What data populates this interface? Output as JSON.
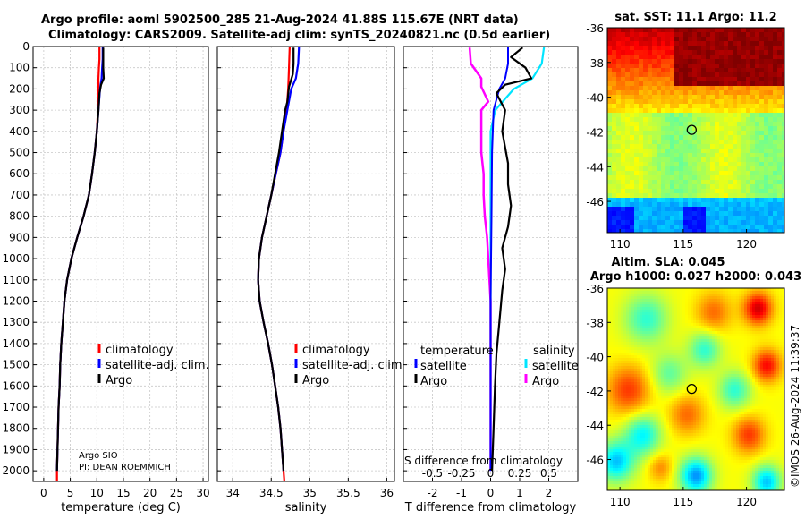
{
  "header": {
    "line1": "Argo profile: aoml 5902500_285 21-Aug-2024 41.88S 115.67E (NRT data)",
    "line2": "Climatology: CARS2009. Satellite-adj clim: synTS_20240821.nc (0.5d earlier)"
  },
  "map_sst": {
    "title": "sat. SST: 11.1 Argo: 11.2"
  },
  "map_sla": {
    "title1": "Altim. SLA: 0.045",
    "title2": "Argo h1000: 0.027 h2000: 0.043"
  },
  "watermark": "©IMOS 26-Aug-2024 11:39:37",
  "colors": {
    "climatology": "#ff0000",
    "satellite": "#0000ff",
    "argo": "#000000",
    "sat_diff_S": "#00e5ff",
    "argo_diff_S": "#ff00ff"
  },
  "chart_data": [
    {
      "type": "line",
      "name": "temperature-profile",
      "xlabel": "temperature (deg C)",
      "ylabel": "",
      "xlim": [
        -2,
        31
      ],
      "ylim": [
        2050,
        0
      ],
      "xticks": [
        0,
        5,
        10,
        15,
        20,
        25,
        30
      ],
      "yticks": [
        0,
        100,
        200,
        300,
        400,
        500,
        600,
        700,
        800,
        900,
        1000,
        1100,
        1200,
        1300,
        1400,
        1500,
        1600,
        1700,
        1800,
        1900,
        2000
      ],
      "legend": [
        "climatology",
        "satellite-adj. clim.",
        "Argo"
      ],
      "credit1": "Argo SIO",
      "credit2": "PI: DEAN ROEMMICH",
      "series": [
        {
          "name": "climatology",
          "points": [
            [
              10.5,
              0
            ],
            [
              10.5,
              60
            ],
            [
              10.4,
              100
            ],
            [
              10.3,
              150
            ],
            [
              10.3,
              200
            ],
            [
              10.2,
              300
            ],
            [
              10.0,
              400
            ],
            [
              9.6,
              500
            ],
            [
              9.1,
              600
            ],
            [
              8.5,
              700
            ],
            [
              7.5,
              800
            ],
            [
              6.3,
              900
            ],
            [
              5.2,
              1000
            ],
            [
              4.4,
              1100
            ],
            [
              3.9,
              1200
            ],
            [
              3.6,
              1300
            ],
            [
              3.3,
              1400
            ],
            [
              3.1,
              1500
            ],
            [
              3.0,
              1600
            ],
            [
              2.8,
              1700
            ],
            [
              2.7,
              1800
            ],
            [
              2.6,
              1900
            ],
            [
              2.5,
              2000
            ],
            [
              2.5,
              2050
            ]
          ]
        },
        {
          "name": "satellite-adj. clim.",
          "points": [
            [
              11.1,
              0
            ],
            [
              11.1,
              60
            ],
            [
              11.0,
              100
            ],
            [
              10.9,
              150
            ],
            [
              10.6,
              200
            ],
            [
              10.3,
              300
            ],
            [
              10.0,
              400
            ],
            [
              9.6,
              500
            ],
            [
              9.1,
              600
            ],
            [
              8.5,
              700
            ],
            [
              7.5,
              800
            ],
            [
              6.3,
              900
            ],
            [
              5.2,
              1000
            ],
            [
              4.4,
              1100
            ],
            [
              3.9,
              1200
            ],
            [
              3.6,
              1300
            ],
            [
              3.3,
              1400
            ],
            [
              3.1,
              1500
            ],
            [
              3.0,
              1600
            ],
            [
              2.8,
              1700
            ],
            [
              2.7,
              1800
            ],
            [
              2.6,
              1900
            ],
            [
              2.5,
              2000
            ]
          ]
        },
        {
          "name": "Argo",
          "points": [
            [
              11.2,
              5
            ],
            [
              11.2,
              50
            ],
            [
              11.2,
              100
            ],
            [
              11.3,
              150
            ],
            [
              10.8,
              180
            ],
            [
              10.5,
              220
            ],
            [
              10.3,
              300
            ],
            [
              10.0,
              400
            ],
            [
              9.6,
              500
            ],
            [
              9.1,
              600
            ],
            [
              8.5,
              700
            ],
            [
              7.5,
              800
            ],
            [
              6.3,
              900
            ],
            [
              5.2,
              1000
            ],
            [
              4.4,
              1100
            ],
            [
              3.9,
              1200
            ],
            [
              3.6,
              1300
            ],
            [
              3.3,
              1400
            ],
            [
              3.1,
              1500
            ],
            [
              3.0,
              1600
            ],
            [
              2.8,
              1700
            ],
            [
              2.7,
              1800
            ],
            [
              2.6,
              1900
            ],
            [
              2.5,
              2000
            ]
          ]
        }
      ]
    },
    {
      "type": "line",
      "name": "salinity-profile",
      "xlabel": "salinity",
      "xlim": [
        33.8,
        36.1
      ],
      "ylim": [
        2050,
        0
      ],
      "xticks": [
        34,
        34.5,
        35,
        35.5,
        36
      ],
      "xticklabels": [
        "34",
        "34.5",
        "35",
        "35.5",
        "36"
      ],
      "legend": [
        "climatology",
        "satellite-adj. clim.",
        "Argo"
      ],
      "series": [
        {
          "name": "climatology",
          "points": [
            [
              34.74,
              0
            ],
            [
              34.73,
              100
            ],
            [
              34.72,
              200
            ],
            [
              34.7,
              300
            ],
            [
              34.66,
              400
            ],
            [
              34.62,
              500
            ],
            [
              34.56,
              600
            ],
            [
              34.5,
              700
            ],
            [
              34.44,
              800
            ],
            [
              34.38,
              900
            ],
            [
              34.34,
              1000
            ],
            [
              34.33,
              1100
            ],
            [
              34.35,
              1200
            ],
            [
              34.4,
              1300
            ],
            [
              34.46,
              1400
            ],
            [
              34.51,
              1500
            ],
            [
              34.55,
              1600
            ],
            [
              34.59,
              1700
            ],
            [
              34.62,
              1800
            ],
            [
              34.64,
              1900
            ],
            [
              34.66,
              2000
            ],
            [
              34.67,
              2050
            ]
          ]
        },
        {
          "name": "satellite-adj. clim.",
          "points": [
            [
              34.86,
              0
            ],
            [
              34.85,
              80
            ],
            [
              34.82,
              150
            ],
            [
              34.76,
              200
            ],
            [
              34.71,
              300
            ],
            [
              34.66,
              400
            ],
            [
              34.62,
              500
            ],
            [
              34.56,
              600
            ],
            [
              34.5,
              700
            ],
            [
              34.44,
              800
            ],
            [
              34.38,
              900
            ],
            [
              34.34,
              1000
            ],
            [
              34.33,
              1100
            ],
            [
              34.35,
              1200
            ],
            [
              34.4,
              1300
            ],
            [
              34.46,
              1400
            ],
            [
              34.51,
              1500
            ],
            [
              34.55,
              1600
            ],
            [
              34.59,
              1700
            ],
            [
              34.62,
              1800
            ],
            [
              34.64,
              1900
            ],
            [
              34.66,
              2000
            ]
          ]
        },
        {
          "name": "Argo",
          "points": [
            [
              34.79,
              5
            ],
            [
              34.79,
              80
            ],
            [
              34.78,
              130
            ],
            [
              34.73,
              190
            ],
            [
              34.71,
              260
            ],
            [
              34.68,
              300
            ],
            [
              34.64,
              400
            ],
            [
              34.6,
              500
            ],
            [
              34.55,
              600
            ],
            [
              34.5,
              700
            ],
            [
              34.44,
              800
            ],
            [
              34.38,
              900
            ],
            [
              34.34,
              1000
            ],
            [
              34.33,
              1100
            ],
            [
              34.35,
              1200
            ],
            [
              34.4,
              1300
            ],
            [
              34.46,
              1400
            ],
            [
              34.51,
              1500
            ],
            [
              34.55,
              1600
            ],
            [
              34.59,
              1700
            ],
            [
              34.62,
              1800
            ],
            [
              34.64,
              1900
            ],
            [
              34.66,
              2000
            ]
          ]
        }
      ]
    },
    {
      "type": "line",
      "name": "difference-profile",
      "xlabel": "T difference from climatology",
      "toplabel": "S difference from climatology",
      "xlim": [
        -3,
        3
      ],
      "ylim": [
        2050,
        0
      ],
      "xticks": [
        -2,
        -1,
        0,
        1,
        2
      ],
      "xticklabels": [
        "-2",
        "-1",
        "0",
        "1",
        "2"
      ],
      "s_ticklabels": [
        "-0.5",
        "-0.25",
        "0",
        "0.25",
        "0.5"
      ],
      "legend_temperature_title": "temperature",
      "legend_salinity_title": "salinity",
      "legend_temperature": [
        "satellite",
        "Argo"
      ],
      "legend_salinity": [
        "satellite",
        "Argo"
      ],
      "series": [
        {
          "name": "T satellite",
          "points": [
            [
              0.6,
              0
            ],
            [
              0.6,
              80
            ],
            [
              0.5,
              150
            ],
            [
              0.3,
              200
            ],
            [
              0.1,
              300
            ],
            [
              0.05,
              500
            ],
            [
              0.03,
              800
            ],
            [
              0.0,
              1200
            ],
            [
              0.0,
              1600
            ],
            [
              0.0,
              2000
            ]
          ]
        },
        {
          "name": "T Argo",
          "points": [
            [
              1.1,
              5
            ],
            [
              0.7,
              50
            ],
            [
              1.2,
              100
            ],
            [
              1.4,
              150
            ],
            [
              0.5,
              180
            ],
            [
              0.2,
              220
            ],
            [
              0.5,
              300
            ],
            [
              0.4,
              400
            ],
            [
              0.6,
              550
            ],
            [
              0.6,
              650
            ],
            [
              0.7,
              750
            ],
            [
              0.6,
              850
            ],
            [
              0.4,
              950
            ],
            [
              0.5,
              1050
            ],
            [
              0.4,
              1150
            ],
            [
              0.3,
              1300
            ],
            [
              0.2,
              1450
            ],
            [
              0.15,
              1600
            ],
            [
              0.1,
              1800
            ],
            [
              0.05,
              2000
            ]
          ]
        },
        {
          "name": "S satellite",
          "points": [
            [
              0.46,
              0
            ],
            [
              0.44,
              80
            ],
            [
              0.36,
              150
            ],
            [
              0.2,
              200
            ],
            [
              0.04,
              300
            ],
            [
              0.0,
              400
            ],
            [
              0.0,
              800
            ],
            [
              0.0,
              1200
            ],
            [
              0.0,
              2000
            ]
          ]
        },
        {
          "name": "S Argo",
          "points": [
            [
              -0.18,
              5
            ],
            [
              -0.17,
              80
            ],
            [
              -0.08,
              150
            ],
            [
              -0.08,
              190
            ],
            [
              -0.02,
              260
            ],
            [
              -0.08,
              300
            ],
            [
              -0.08,
              400
            ],
            [
              -0.08,
              500
            ],
            [
              -0.06,
              600
            ],
            [
              -0.06,
              700
            ],
            [
              -0.05,
              800
            ],
            [
              -0.03,
              900
            ],
            [
              -0.02,
              1000
            ],
            [
              -0.01,
              1100
            ],
            [
              0.0,
              1200
            ],
            [
              0.0,
              1300
            ],
            [
              0.0,
              1400
            ],
            [
              0.0,
              1600
            ],
            [
              0.0,
              1800
            ],
            [
              0.0,
              2000
            ]
          ]
        }
      ]
    },
    {
      "type": "heatmap",
      "name": "sst-map",
      "title": "sat. SST: 11.1 Argo: 11.2",
      "xlim": [
        109,
        123
      ],
      "ylim": [
        -47.8,
        -36
      ],
      "xticks": [
        110,
        115,
        120
      ],
      "yticks": [
        -36,
        -38,
        -40,
        -42,
        -44,
        -46
      ],
      "marker": {
        "lon": 115.67,
        "lat": -41.88
      }
    },
    {
      "type": "heatmap",
      "name": "sla-map",
      "title": "Altim. SLA: 0.045",
      "xlim": [
        109,
        123
      ],
      "ylim": [
        -47.8,
        -36
      ],
      "xticks": [
        110,
        115,
        120
      ],
      "yticks": [
        -36,
        -38,
        -40,
        -42,
        -44,
        -46
      ],
      "marker": {
        "lon": 115.67,
        "lat": -41.88
      }
    }
  ]
}
